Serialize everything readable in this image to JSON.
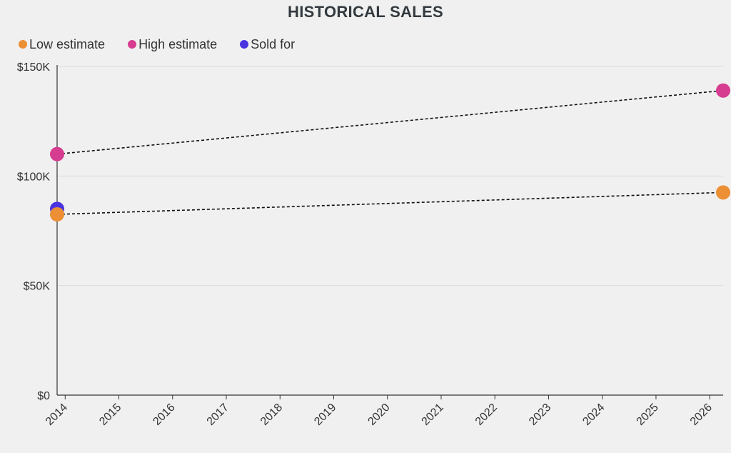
{
  "chart_data": {
    "type": "scatter",
    "title": "HISTORICAL SALES",
    "xlabel": "",
    "ylabel": "",
    "x_ticks": [
      "2014",
      "2015",
      "2016",
      "2017",
      "2018",
      "2019",
      "2020",
      "2021",
      "2022",
      "2023",
      "2024",
      "2025",
      "2026"
    ],
    "xlim": [
      2013.85,
      2026.25
    ],
    "ylim": [
      0,
      150000
    ],
    "y_ticks": [
      {
        "value": 0,
        "label": "$0"
      },
      {
        "value": 50000,
        "label": "$50K"
      },
      {
        "value": 100000,
        "label": "$100K"
      },
      {
        "value": 150000,
        "label": "$150K"
      }
    ],
    "grid": true,
    "legend_position": "top-left",
    "series": [
      {
        "name": "Low estimate",
        "color": "#ec8f35",
        "trendline": true,
        "points": [
          {
            "x": 2013.85,
            "y": 82500
          },
          {
            "x": 2026.25,
            "y": 92500
          }
        ]
      },
      {
        "name": "High estimate",
        "color": "#d63c8f",
        "trendline": true,
        "points": [
          {
            "x": 2013.85,
            "y": 110000
          },
          {
            "x": 2026.25,
            "y": 139000
          }
        ]
      },
      {
        "name": "Sold for",
        "color": "#4a34e0",
        "trendline": false,
        "points": [
          {
            "x": 2013.85,
            "y": 85000
          }
        ]
      }
    ]
  }
}
